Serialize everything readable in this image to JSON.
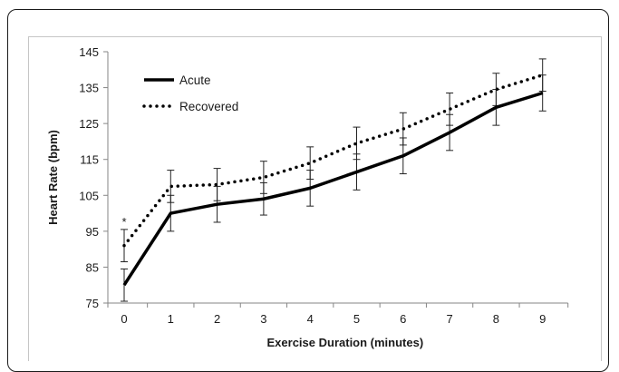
{
  "chart_data": {
    "type": "line",
    "title": "",
    "xlabel": "Exercise Duration (minutes)",
    "ylabel": "Heart Rate (bpm)",
    "x": [
      0,
      1,
      2,
      3,
      4,
      5,
      6,
      7,
      8,
      9
    ],
    "xlim": [
      0,
      9
    ],
    "ylim": [
      75,
      145
    ],
    "yticks": [
      75,
      85,
      95,
      105,
      115,
      125,
      135,
      145
    ],
    "grid": false,
    "legend_position": "top-left",
    "series": [
      {
        "name": "Acute",
        "style": "solid",
        "color": "#000000",
        "values": [
          80,
          100,
          102.5,
          104,
          107,
          111.5,
          116,
          122.5,
          129.5,
          133.5
        ],
        "error": [
          4.5,
          5,
          5,
          4.5,
          5,
          5,
          5,
          5,
          5,
          5
        ]
      },
      {
        "name": "Recovered",
        "style": "dotted",
        "color": "#000000",
        "values": [
          91,
          107.5,
          108,
          110,
          114,
          119.5,
          123.5,
          129,
          134.5,
          138.5
        ],
        "error": [
          4.5,
          4.5,
          4.5,
          4.5,
          4.5,
          4.5,
          4.5,
          4.5,
          4.5,
          4.5
        ]
      }
    ],
    "annotations": [
      {
        "text": "*",
        "x": 0,
        "y": 98.5
      }
    ]
  }
}
